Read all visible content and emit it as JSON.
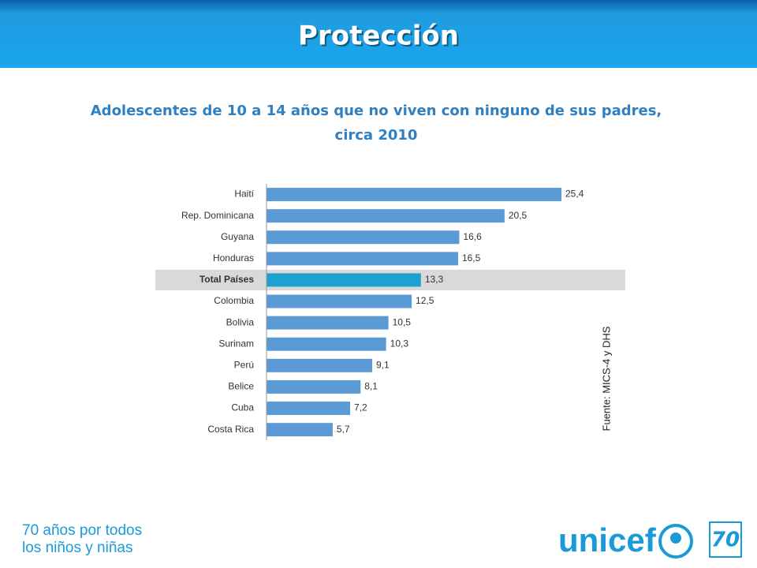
{
  "header": {
    "title": "Protección"
  },
  "chart_data": {
    "type": "bar",
    "orientation": "horizontal",
    "title_lines": [
      "Adolescentes de 10 a 14 años que no viven con ninguno de sus padres,",
      "circa 2010"
    ],
    "categories": [
      "Haití",
      "Rep. Dominicana",
      "Guyana",
      "Honduras",
      "Total Países",
      "Colombia",
      "Bolivia",
      "Surinam",
      "Perú",
      "Belice",
      "Cuba",
      "Costa Rica"
    ],
    "values": [
      25.4,
      20.5,
      16.6,
      16.5,
      13.3,
      12.5,
      10.5,
      10.3,
      9.1,
      8.1,
      7.2,
      5.7
    ],
    "value_labels": [
      "25,4",
      "20,5",
      "16,6",
      "16,5",
      "13,3",
      "12,5",
      "10,5",
      "10,3",
      "9,1",
      "8,1",
      "7,2",
      "5,7"
    ],
    "color": "#5b9bd5",
    "highlight": "Total Países",
    "highlight_color": "#1da1cf",
    "source": "Fuente: MICS-4 y DHS"
  },
  "footer": {
    "slogan_lines": [
      "70 años por todos",
      "los niños y niñas"
    ],
    "logo": "unicef",
    "badge": "70"
  }
}
